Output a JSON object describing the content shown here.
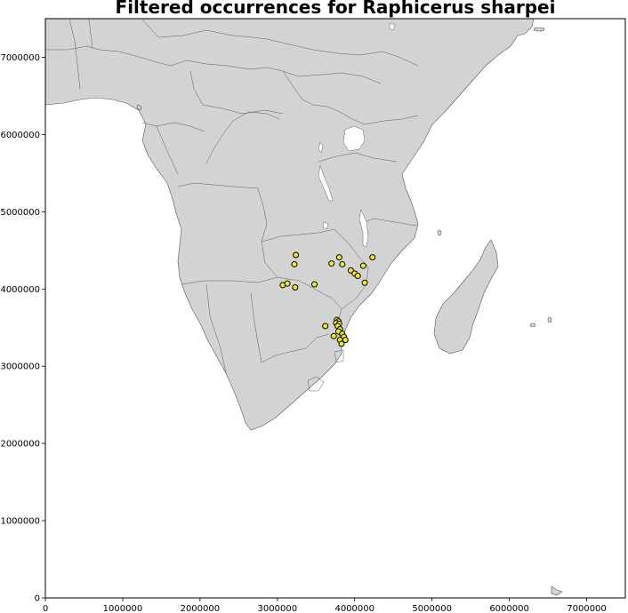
{
  "chart_data": {
    "type": "scatter",
    "title": "Filtered occurrences for Raphicerus sharpei",
    "xlim": [
      0,
      7500000
    ],
    "ylim": [
      0,
      7500000
    ],
    "x_ticks": [
      0,
      1000000,
      2000000,
      3000000,
      4000000,
      5000000,
      6000000,
      7000000
    ],
    "y_ticks": [
      0,
      1000000,
      2000000,
      3000000,
      4000000,
      5000000,
      6000000,
      7000000
    ],
    "x_tick_labels": [
      "0",
      "1000000",
      "2000000",
      "3000000",
      "4000000",
      "5000000",
      "6000000",
      "7000000"
    ],
    "y_tick_labels": [
      "0",
      "1000000",
      "2000000",
      "3000000",
      "4000000",
      "5000000",
      "6000000",
      "7000000"
    ],
    "marker_color": "#f2e82a",
    "land_color": "#d3d3d3",
    "points": [
      {
        "x": 3240000,
        "y": 4440000
      },
      {
        "x": 3220000,
        "y": 4320000
      },
      {
        "x": 3800000,
        "y": 4410000
      },
      {
        "x": 4230000,
        "y": 4410000
      },
      {
        "x": 3700000,
        "y": 4330000
      },
      {
        "x": 3840000,
        "y": 4320000
      },
      {
        "x": 4110000,
        "y": 4300000
      },
      {
        "x": 3950000,
        "y": 4240000
      },
      {
        "x": 4000000,
        "y": 4200000
      },
      {
        "x": 4040000,
        "y": 4170000
      },
      {
        "x": 4130000,
        "y": 4080000
      },
      {
        "x": 3070000,
        "y": 4050000
      },
      {
        "x": 3130000,
        "y": 4070000
      },
      {
        "x": 3230000,
        "y": 4020000
      },
      {
        "x": 3480000,
        "y": 4060000
      },
      {
        "x": 3770000,
        "y": 3600000
      },
      {
        "x": 3790000,
        "y": 3580000
      },
      {
        "x": 3760000,
        "y": 3560000
      },
      {
        "x": 3800000,
        "y": 3550000
      },
      {
        "x": 3620000,
        "y": 3520000
      },
      {
        "x": 3780000,
        "y": 3520000
      },
      {
        "x": 3810000,
        "y": 3480000
      },
      {
        "x": 3790000,
        "y": 3450000
      },
      {
        "x": 3840000,
        "y": 3420000
      },
      {
        "x": 3730000,
        "y": 3390000
      },
      {
        "x": 3860000,
        "y": 3380000
      },
      {
        "x": 3810000,
        "y": 3340000
      },
      {
        "x": 3880000,
        "y": 3340000
      },
      {
        "x": 3830000,
        "y": 3290000
      }
    ]
  }
}
